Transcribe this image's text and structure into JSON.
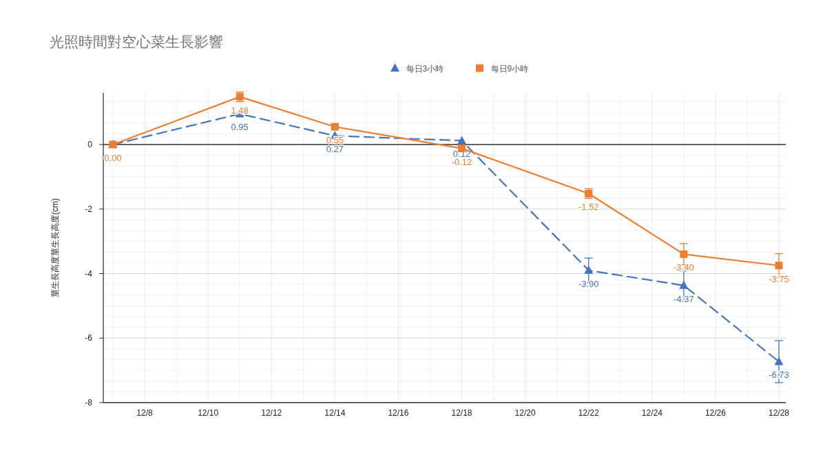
{
  "chart_data": {
    "type": "line",
    "title": "光照時間對空心菜生長影響",
    "ylabel": "莖生長高度莖生長高度(cm)",
    "x": [
      "--12-07",
      "--12-11",
      "--12-14",
      "--12-18",
      "--12-22",
      "--12-25",
      "--12-28"
    ],
    "xlim": [
      "--12-07",
      "--12-28"
    ],
    "xticks": [
      {
        "value": "--12-08",
        "label": "12/8"
      },
      {
        "value": "--12-10",
        "label": "12/10"
      },
      {
        "value": "--12-12",
        "label": "12/12"
      },
      {
        "value": "--12-14",
        "label": "12/14"
      },
      {
        "value": "--12-16",
        "label": "12/16"
      },
      {
        "value": "--12-18",
        "label": "12/18"
      },
      {
        "value": "--12-20",
        "label": "12/20"
      },
      {
        "value": "--12-22",
        "label": "12/22"
      },
      {
        "value": "--12-24",
        "label": "12/24"
      },
      {
        "value": "--12-26",
        "label": "12/26"
      },
      {
        "value": "--12-28",
        "label": "12/28"
      }
    ],
    "ylim": [
      -8,
      1.6
    ],
    "yticks": [
      -8,
      -6,
      -4,
      -2,
      0
    ],
    "grid": true,
    "legend": "top",
    "series": [
      {
        "name": "每日3小時",
        "color": "#4472c4",
        "marker": "triangle",
        "line_style": "dashed",
        "values": [
          0.0,
          0.95,
          0.27,
          0.12,
          -3.9,
          -4.37,
          -6.73
        ],
        "value_labels": [
          null,
          "0.95",
          "0.27",
          "0.12",
          "-3.90",
          "-4.37",
          "-6.73"
        ],
        "errors": [
          null,
          null,
          null,
          null,
          0.38,
          0.45,
          0.65
        ]
      },
      {
        "name": "每日9小時",
        "color": "#ed7d31",
        "marker": "square",
        "line_style": "solid",
        "values": [
          0.0,
          1.48,
          0.55,
          -0.12,
          -1.52,
          -3.4,
          -3.75
        ],
        "value_labels": [
          "0.00",
          "1.48",
          "0.55",
          "-0.12",
          "-1.52",
          "-3.40",
          "-3.75"
        ],
        "errors": [
          null,
          0.15,
          0.05,
          null,
          0.15,
          0.33,
          0.37
        ]
      }
    ]
  }
}
